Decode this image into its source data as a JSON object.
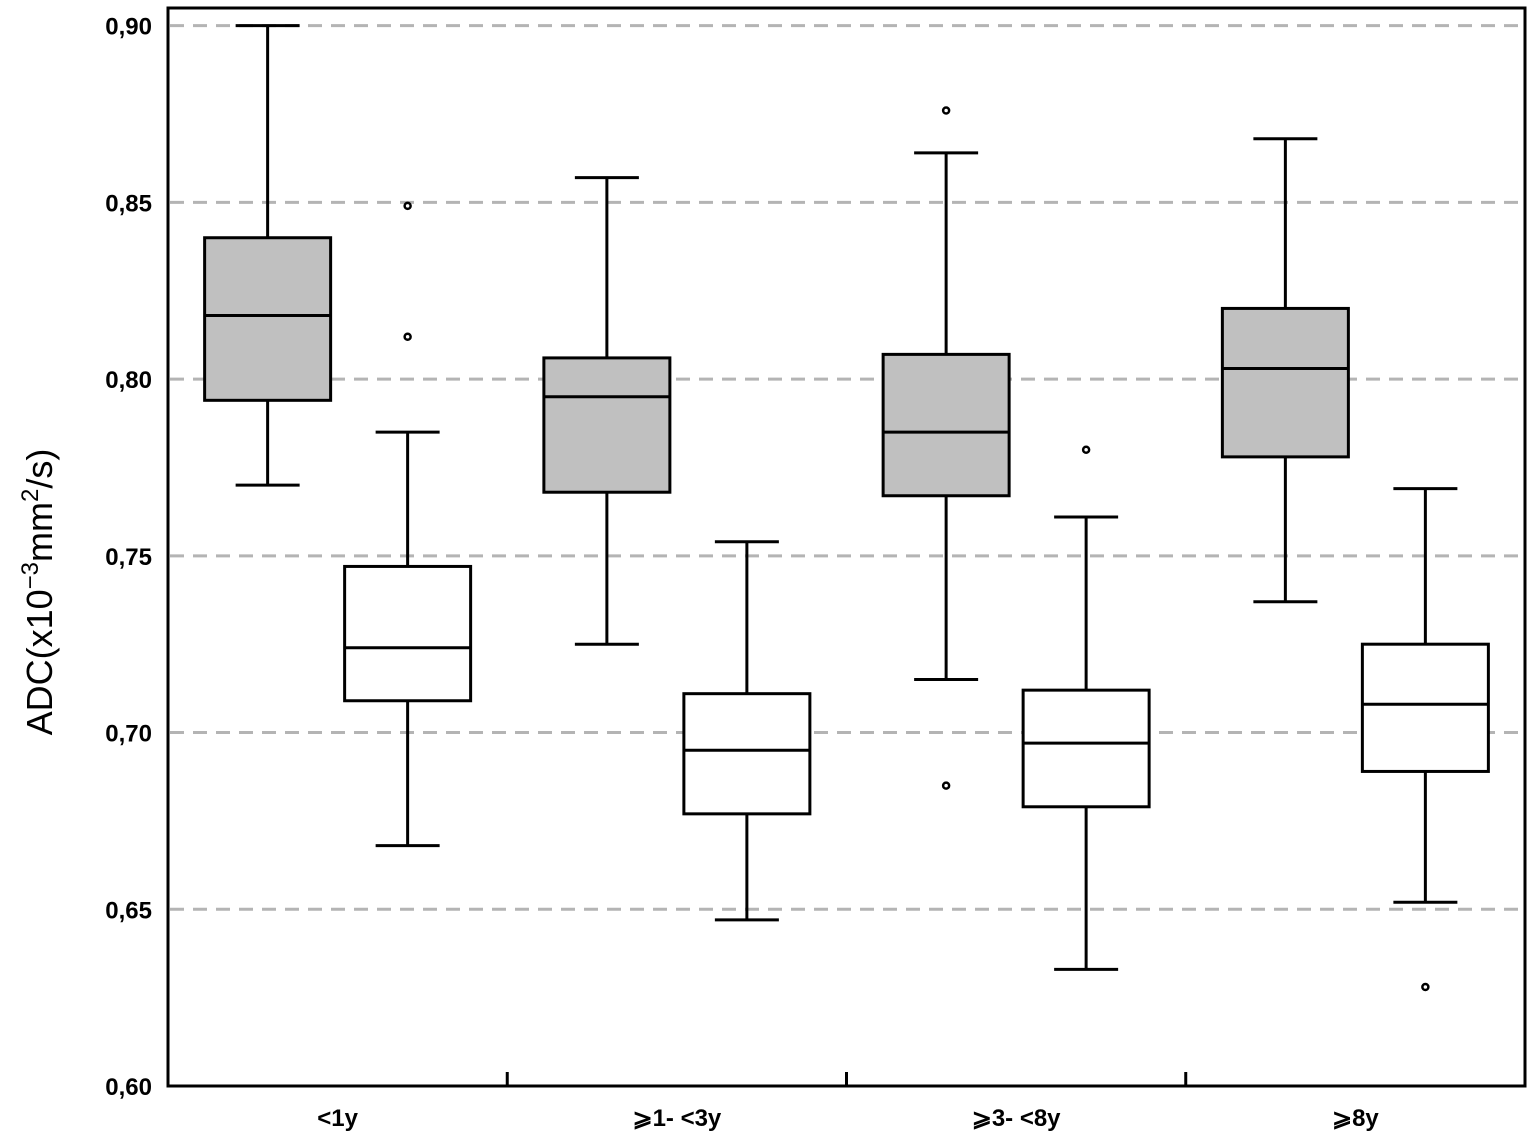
{
  "chart_data": {
    "type": "boxplot",
    "title": "",
    "xlabel": "",
    "ylabel": "ADC(x10",
    "ylabel_exponent": "−3",
    "ylabel_unit": "mm",
    "ylabel_unit_exponent": "2",
    "ylabel_suffix": "/s)",
    "ylim": [
      0.6,
      0.905
    ],
    "yticks": [
      0.6,
      0.65,
      0.7,
      0.75,
      0.8,
      0.85,
      0.9
    ],
    "ytick_labels": [
      "0,60",
      "0,65",
      "0,70",
      "0,75",
      "0,80",
      "0,85",
      "0,90"
    ],
    "grid": "horizontal dashed",
    "categories": [
      "<1y",
      "⩾1- <3y",
      "⩾3- <8y",
      "⩾8y"
    ],
    "series": [
      {
        "fill": "#c0c0c0",
        "boxes": [
          {
            "whisker_low": 0.77,
            "q1": 0.794,
            "median": 0.818,
            "q3": 0.84,
            "whisker_high": 0.9,
            "outliers": []
          },
          {
            "whisker_low": 0.725,
            "q1": 0.768,
            "median": 0.795,
            "q3": 0.806,
            "whisker_high": 0.857,
            "outliers": []
          },
          {
            "whisker_low": 0.715,
            "q1": 0.767,
            "median": 0.785,
            "q3": 0.807,
            "whisker_high": 0.864,
            "outliers": [
              0.876,
              0.685
            ]
          },
          {
            "whisker_low": 0.737,
            "q1": 0.778,
            "median": 0.803,
            "q3": 0.82,
            "whisker_high": 0.868,
            "outliers": []
          }
        ]
      },
      {
        "fill": "#ffffff",
        "boxes": [
          {
            "whisker_low": 0.668,
            "q1": 0.709,
            "median": 0.724,
            "q3": 0.747,
            "whisker_high": 0.785,
            "outliers": [
              0.849,
              0.812
            ]
          },
          {
            "whisker_low": 0.647,
            "q1": 0.677,
            "median": 0.695,
            "q3": 0.711,
            "whisker_high": 0.754,
            "outliers": []
          },
          {
            "whisker_low": 0.633,
            "q1": 0.679,
            "median": 0.697,
            "q3": 0.712,
            "whisker_high": 0.761,
            "outliers": [
              0.78
            ]
          },
          {
            "whisker_low": 0.652,
            "q1": 0.689,
            "median": 0.708,
            "q3": 0.725,
            "whisker_high": 0.769,
            "outliers": [
              0.628
            ]
          }
        ]
      }
    ]
  }
}
